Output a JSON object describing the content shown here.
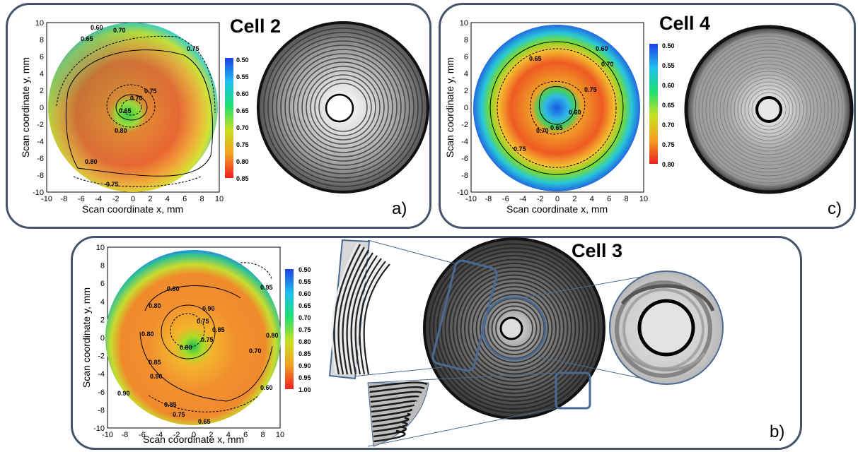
{
  "colors": {
    "panel_border": "#44546a",
    "zoom_frame": "#4a6a94"
  },
  "panels": {
    "a": {
      "title": "Cell 2",
      "letter": "a)",
      "xlabel": "Scan coordinate x, mm",
      "ylabel": "Scan coordinate y, mm",
      "colorbar": [
        "0.50",
        "0.55",
        "0.60",
        "0.65",
        "0.70",
        "0.75",
        "0.80",
        "0.85"
      ],
      "contour_labels": [
        "0.60",
        "0.65",
        "0.70",
        "0.75",
        "0.75",
        "0.70",
        "0.65",
        "0.80",
        "0.80",
        "0.75"
      ]
    },
    "c": {
      "title": "Cell 4",
      "letter": "c)",
      "xlabel": "Scan coordinate x, mm",
      "ylabel": "Scan coordinate y, mm",
      "colorbar": [
        "0.50",
        "0.55",
        "0.60",
        "0.65",
        "0.70",
        "0.75",
        "0.80"
      ],
      "contour_labels": [
        "0.65",
        "0.60",
        "0.70",
        "0.60",
        "0.75",
        "0.70",
        "0.65",
        "0.75"
      ]
    },
    "b": {
      "title": "Cell 3",
      "letter": "b)",
      "xlabel": "Scan coordinate x, mm",
      "ylabel": "Scan coordinate y, mm",
      "colorbar": [
        "0.50",
        "0.55",
        "0.60",
        "0.65",
        "0.70",
        "0.75",
        "0.80",
        "0.85",
        "0.90",
        "0.95",
        "1.00"
      ],
      "contour_labels": [
        "0.95",
        "0.80",
        "0.80",
        "0.90",
        "0.75",
        "0.85",
        "0.80",
        "0.75",
        "0.80",
        "0.85",
        "0.90",
        "0.70",
        "0.80",
        "0.90",
        "0.60",
        "0.85",
        "0.75",
        "0.65"
      ]
    }
  },
  "x_ticks": [
    "-10",
    "-8",
    "-6",
    "-4",
    "-2",
    "0",
    "2",
    "4",
    "6",
    "8",
    "10"
  ],
  "y_ticks": [
    "10",
    "8",
    "6",
    "4",
    "2",
    "0",
    "-2",
    "-4",
    "-6",
    "-8",
    "-10"
  ]
}
